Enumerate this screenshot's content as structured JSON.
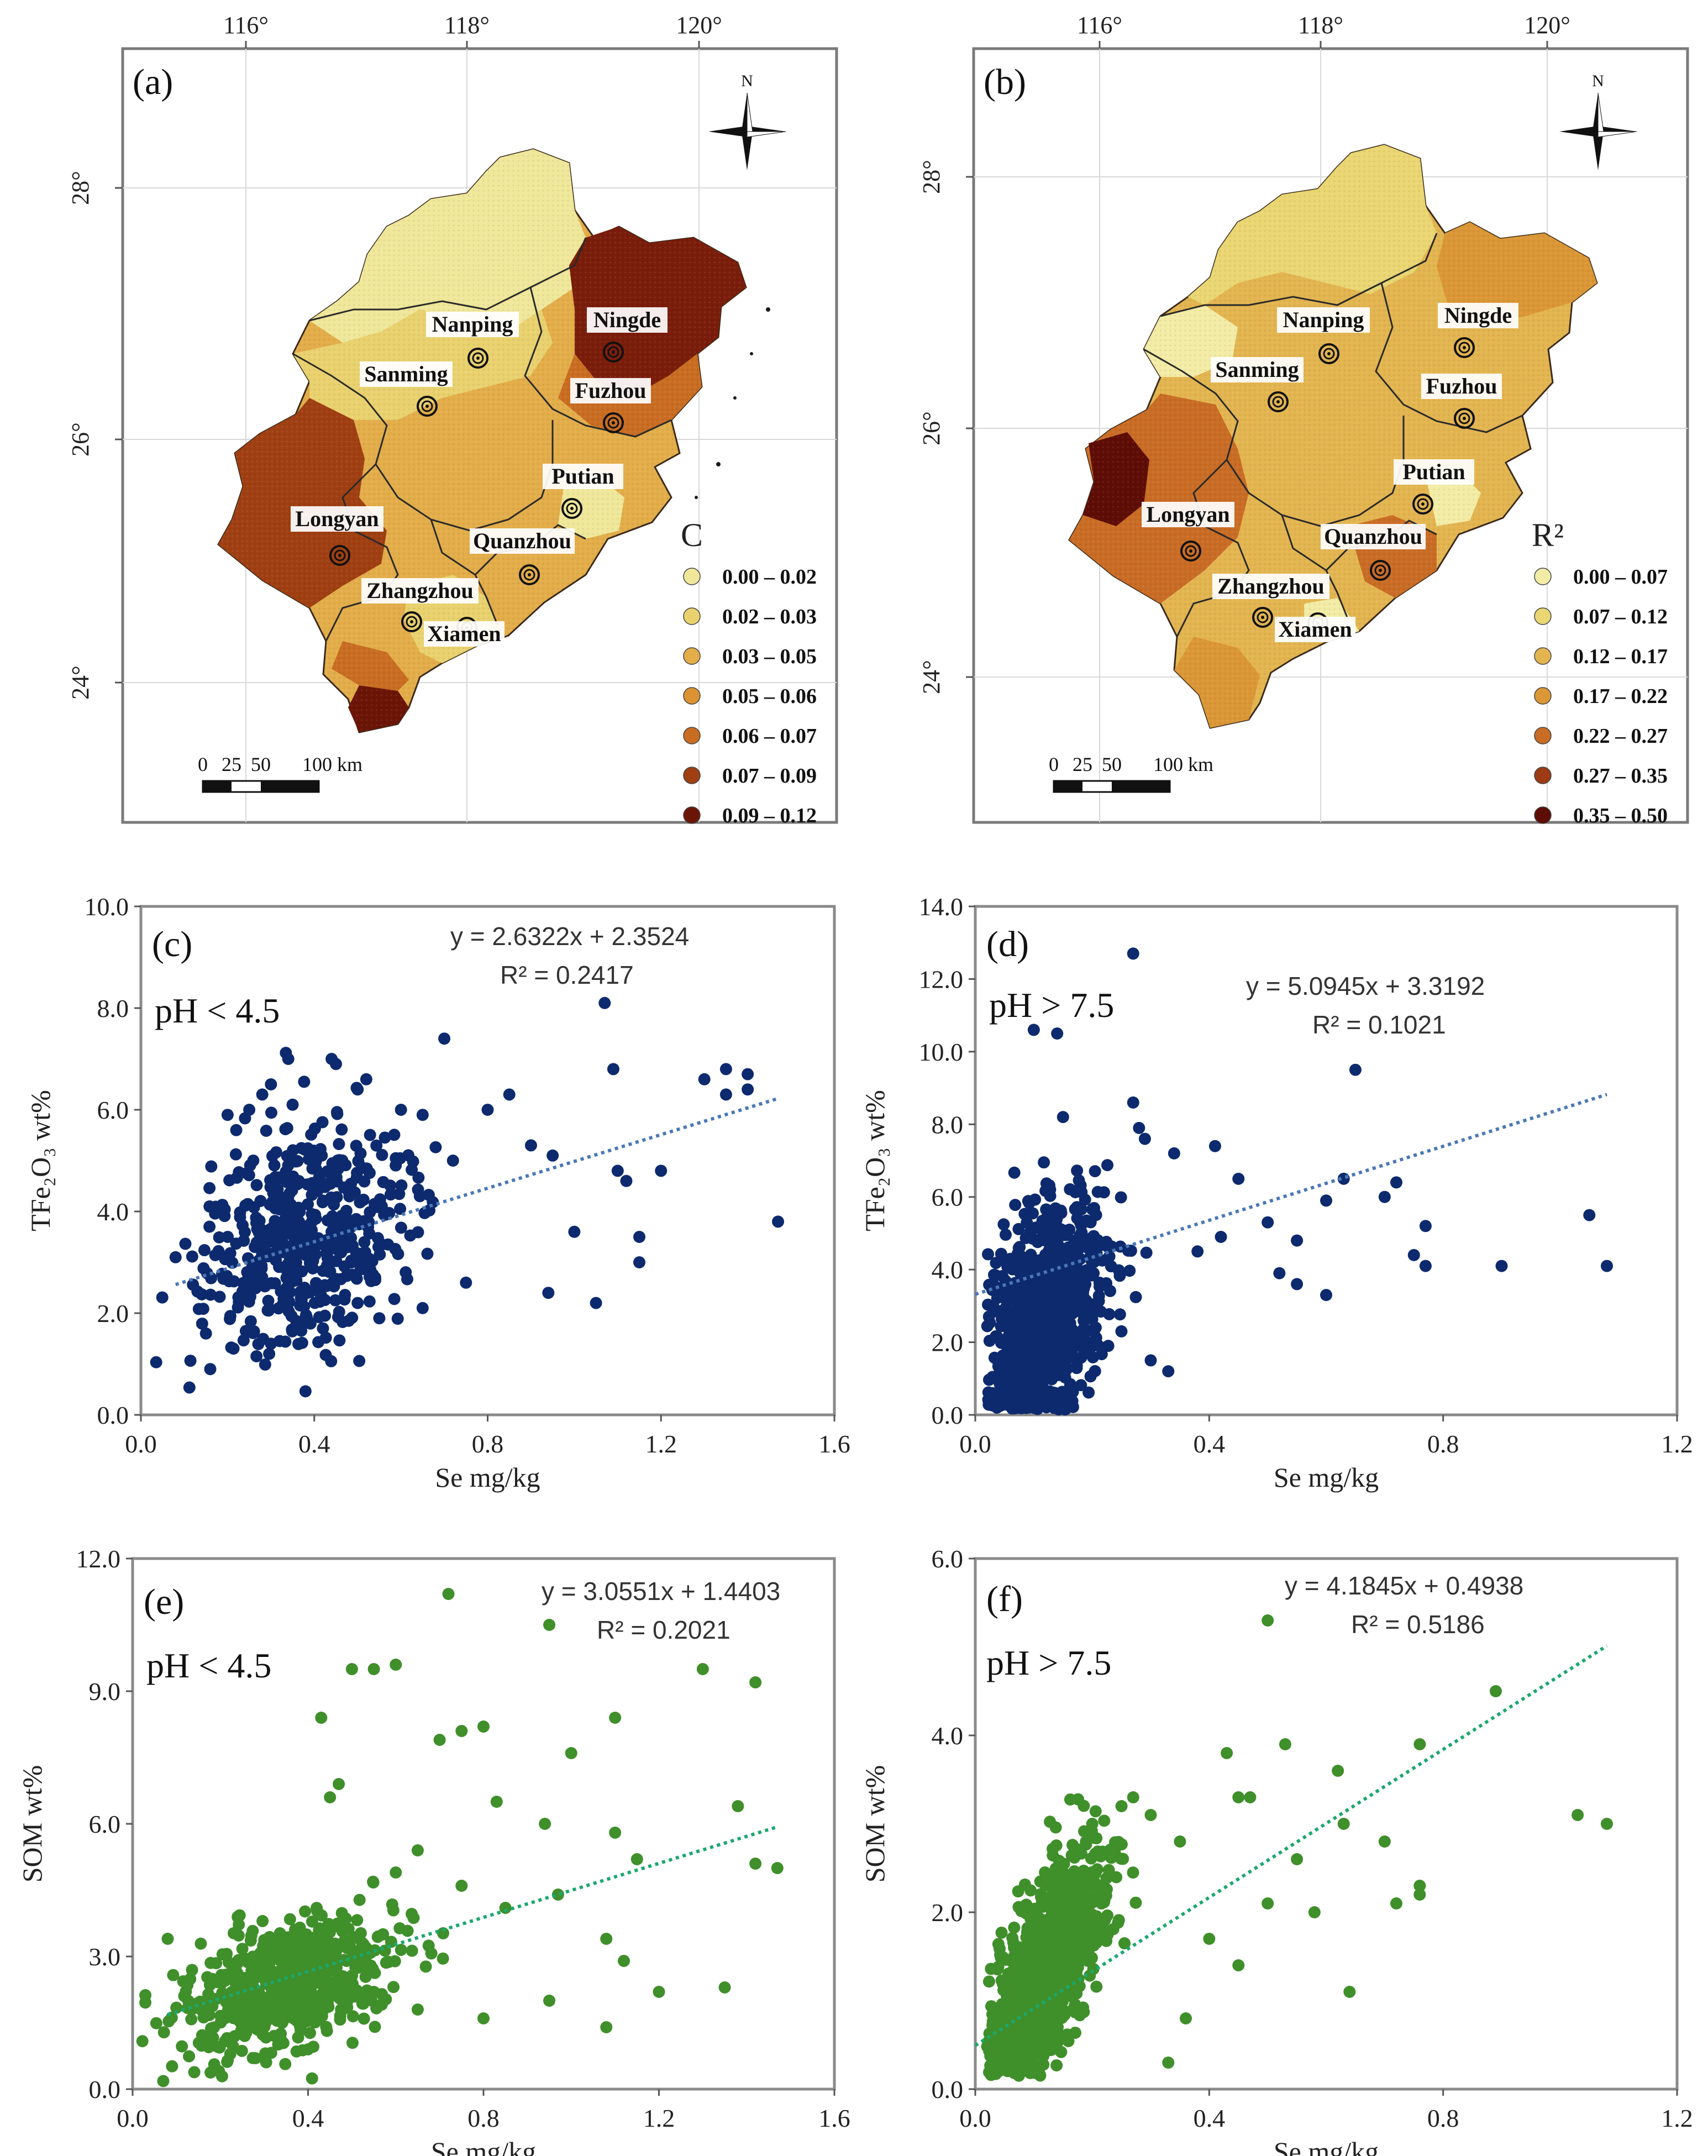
{
  "maps": [
    {
      "id": "a",
      "panel_label": "(a)",
      "legend_title": "C",
      "legend": [
        {
          "label": "0.00 – 0.02",
          "color": "#efe79a"
        },
        {
          "label": "0.02 – 0.03",
          "color": "#e9d16e"
        },
        {
          "label": "0.03 – 0.05",
          "color": "#e3ad4a"
        },
        {
          "label": "0.05 – 0.06",
          "color": "#dc9233"
        },
        {
          "label": "0.06 – 0.07",
          "color": "#c96d22"
        },
        {
          "label": "0.07 – 0.09",
          "color": "#9f3f12"
        },
        {
          "label": "0.09 – 0.12",
          "color": "#6b1507"
        }
      ]
    },
    {
      "id": "b",
      "panel_label": "(b)",
      "legend_title": "R²",
      "legend": [
        {
          "label": "0.00 – 0.07",
          "color": "#f3eca6"
        },
        {
          "label": "0.07 – 0.12",
          "color": "#ead672"
        },
        {
          "label": "0.12 – 0.17",
          "color": "#e3b550"
        },
        {
          "label": "0.17 – 0.22",
          "color": "#db9736"
        },
        {
          "label": "0.22 – 0.27",
          "color": "#c96c25"
        },
        {
          "label": "0.27 – 0.35",
          "color": "#9c3b14"
        },
        {
          "label": "0.35 – 0.50",
          "color": "#5e0d05"
        }
      ]
    }
  ],
  "map_common": {
    "lon_ticks": [
      "116°",
      "118°",
      "120°"
    ],
    "lat_ticks": [
      "28°",
      "26°",
      "24°"
    ],
    "north": "N",
    "scale_ticks": [
      "0",
      "25",
      "50",
      "100 km"
    ],
    "cities": [
      "Nanping",
      "Ningde",
      "Sanming",
      "Fuzhou",
      "Putian",
      "Longyan",
      "Quanzhou",
      "Zhangzhou",
      "Xiamen"
    ]
  },
  "chart_data": [
    {
      "id": "c",
      "type": "scatter",
      "panel_label": "(c)",
      "condition": "pH < 4.5",
      "equation": "y = 2.6322x + 2.3524",
      "r2_text": "R² = 0.2417",
      "slope": 2.6322,
      "intercept": 2.3524,
      "xlim": [
        0,
        1.6
      ],
      "ylim": [
        0,
        10
      ],
      "x_ticks": [
        "0.0",
        "0.4",
        "0.8",
        "1.2",
        "1.6"
      ],
      "y_ticks": [
        "0.0",
        "2.0",
        "4.0",
        "6.0",
        "8.0",
        "10.0"
      ],
      "xlabel": "Se  mg/kg",
      "ylabel": "TFe₂O₃ wt%",
      "color": "#0d2a6e",
      "trend_color": "#4a78b5",
      "points": [
        [
          0.08,
          3.1
        ],
        [
          0.15,
          1.6
        ],
        [
          0.16,
          0.9
        ],
        [
          0.2,
          5.9
        ],
        [
          0.22,
          5.6
        ],
        [
          0.25,
          6.0
        ],
        [
          0.28,
          6.3
        ],
        [
          0.3,
          6.5
        ],
        [
          0.34,
          7.0
        ],
        [
          0.35,
          6.1
        ],
        [
          0.44,
          7.0
        ],
        [
          0.45,
          6.9
        ],
        [
          0.5,
          6.4
        ],
        [
          0.52,
          6.6
        ],
        [
          0.6,
          6.0
        ],
        [
          0.65,
          5.9
        ],
        [
          0.7,
          7.4
        ],
        [
          0.72,
          5.0
        ],
        [
          0.75,
          2.6
        ],
        [
          0.8,
          6.0
        ],
        [
          0.85,
          6.3
        ],
        [
          0.9,
          5.3
        ],
        [
          0.94,
          2.4
        ],
        [
          0.95,
          5.1
        ],
        [
          1.0,
          3.6
        ],
        [
          1.05,
          2.2
        ],
        [
          1.07,
          8.1
        ],
        [
          1.09,
          6.8
        ],
        [
          1.1,
          4.8
        ],
        [
          1.12,
          4.6
        ],
        [
          1.15,
          3.0
        ],
        [
          1.15,
          3.5
        ],
        [
          1.2,
          4.8
        ],
        [
          1.3,
          6.6
        ],
        [
          1.35,
          6.3
        ],
        [
          1.35,
          6.8
        ],
        [
          1.4,
          6.4
        ],
        [
          1.4,
          6.7
        ],
        [
          1.47,
          3.8
        ],
        [
          0.65,
          2.1
        ],
        [
          0.55,
          1.9
        ],
        [
          0.5,
          2.2
        ],
        [
          0.42,
          1.7
        ],
        [
          0.3,
          1.4
        ]
      ]
    },
    {
      "id": "d",
      "type": "scatter",
      "panel_label": "(d)",
      "condition": "pH > 7.5",
      "equation": "y = 5.0945x + 3.3192",
      "r2_text": "R² = 0.1021",
      "slope": 5.0945,
      "intercept": 3.3192,
      "xlim": [
        0,
        1.2
      ],
      "ylim": [
        0,
        14
      ],
      "x_ticks": [
        "0.0",
        "0.4",
        "0.8",
        "1.2"
      ],
      "y_ticks": [
        "0.0",
        "2.0",
        "4.0",
        "6.0",
        "8.0",
        "10.0",
        "12.0",
        "14.0"
      ],
      "xlabel": "Se  mg/kg",
      "ylabel": "TFe₂O₃ wt%",
      "color": "#0d2a6e",
      "trend_color": "#4a78b5",
      "points": [
        [
          0.1,
          10.6
        ],
        [
          0.14,
          10.5
        ],
        [
          0.27,
          12.7
        ],
        [
          0.15,
          8.2
        ],
        [
          0.27,
          8.6
        ],
        [
          0.28,
          7.9
        ],
        [
          0.29,
          7.6
        ],
        [
          0.34,
          7.2
        ],
        [
          0.41,
          7.4
        ],
        [
          0.45,
          6.5
        ],
        [
          0.5,
          5.3
        ],
        [
          0.55,
          4.8
        ],
        [
          0.6,
          5.9
        ],
        [
          0.63,
          6.5
        ],
        [
          0.65,
          9.5
        ],
        [
          0.7,
          6.0
        ],
        [
          0.72,
          6.4
        ],
        [
          0.75,
          4.4
        ],
        [
          0.77,
          4.1
        ],
        [
          0.77,
          5.2
        ],
        [
          0.9,
          4.1
        ],
        [
          1.05,
          5.5
        ],
        [
          1.08,
          4.1
        ],
        [
          0.33,
          1.2
        ],
        [
          0.3,
          1.5
        ],
        [
          0.52,
          3.9
        ],
        [
          0.55,
          3.6
        ],
        [
          0.6,
          3.3
        ],
        [
          0.38,
          4.5
        ],
        [
          0.42,
          4.9
        ]
      ]
    },
    {
      "id": "e",
      "type": "scatter",
      "panel_label": "(e)",
      "condition": "pH < 4.5",
      "equation": "y = 3.0551x + 1.4403",
      "r2_text": "R² = 0.2021",
      "slope": 3.0551,
      "intercept": 1.4403,
      "xlim": [
        0,
        1.6
      ],
      "ylim": [
        0,
        12
      ],
      "x_ticks": [
        "0.0",
        "0.4",
        "0.8",
        "1.2",
        "1.6"
      ],
      "y_ticks": [
        "0.0",
        "3.0",
        "6.0",
        "9.0",
        "12.0"
      ],
      "xlabel": "Se  mg/kg",
      "ylabel": "SOM  wt%",
      "color": "#3f8f2a",
      "trend_color": "#1aa86f",
      "points": [
        [
          0.08,
          3.4
        ],
        [
          0.43,
          8.4
        ],
        [
          0.45,
          6.6
        ],
        [
          0.47,
          6.9
        ],
        [
          0.5,
          9.5
        ],
        [
          0.55,
          9.5
        ],
        [
          0.6,
          9.6
        ],
        [
          0.7,
          7.9
        ],
        [
          0.72,
          11.2
        ],
        [
          0.75,
          8.1
        ],
        [
          0.8,
          8.2
        ],
        [
          0.83,
          6.5
        ],
        [
          0.94,
          6.0
        ],
        [
          0.95,
          10.5
        ],
        [
          1.0,
          7.6
        ],
        [
          1.1,
          8.4
        ],
        [
          1.1,
          5.8
        ],
        [
          1.15,
          5.2
        ],
        [
          1.2,
          2.2
        ],
        [
          1.3,
          9.5
        ],
        [
          1.35,
          2.3
        ],
        [
          1.38,
          6.4
        ],
        [
          1.42,
          9.2
        ],
        [
          1.42,
          5.1
        ],
        [
          1.47,
          5.0
        ],
        [
          0.6,
          4.9
        ],
        [
          0.65,
          5.4
        ],
        [
          0.75,
          4.6
        ],
        [
          0.85,
          4.1
        ],
        [
          0.97,
          4.4
        ],
        [
          1.08,
          3.4
        ],
        [
          1.12,
          2.9
        ],
        [
          0.55,
          2.2
        ],
        [
          0.65,
          1.8
        ],
        [
          0.8,
          1.6
        ],
        [
          0.95,
          2.0
        ],
        [
          1.08,
          1.4
        ],
        [
          0.28,
          0.7
        ],
        [
          0.4,
          0.9
        ]
      ]
    },
    {
      "id": "f",
      "type": "scatter",
      "panel_label": "(f)",
      "condition": "pH > 7.5",
      "equation": "y = 4.1845x + 0.4938",
      "r2_text": "R² = 0.5186",
      "slope": 4.1845,
      "intercept": 0.4938,
      "xlim": [
        0,
        1.2
      ],
      "ylim": [
        0,
        6
      ],
      "x_ticks": [
        "0.0",
        "0.4",
        "0.8",
        "1.2"
      ],
      "y_ticks": [
        "0.0",
        "2.0",
        "4.0",
        "6.0"
      ],
      "xlabel": "Se  mg/kg",
      "ylabel": "SOM  wt%",
      "color": "#3f8f2a",
      "trend_color": "#1aa86f",
      "points": [
        [
          0.5,
          5.3
        ],
        [
          0.53,
          3.9
        ],
        [
          0.43,
          3.8
        ],
        [
          0.45,
          3.3
        ],
        [
          0.47,
          3.3
        ],
        [
          0.62,
          3.6
        ],
        [
          0.63,
          3.0
        ],
        [
          0.7,
          2.8
        ],
        [
          0.72,
          2.1
        ],
        [
          0.76,
          3.9
        ],
        [
          0.76,
          2.3
        ],
        [
          0.76,
          2.2
        ],
        [
          0.89,
          4.5
        ],
        [
          1.03,
          3.1
        ],
        [
          1.08,
          3.0
        ],
        [
          0.64,
          1.1
        ],
        [
          0.55,
          2.6
        ],
        [
          0.58,
          2.0
        ],
        [
          0.5,
          2.1
        ],
        [
          0.4,
          1.7
        ],
        [
          0.45,
          1.4
        ],
        [
          0.36,
          0.8
        ],
        [
          0.33,
          0.3
        ],
        [
          0.3,
          3.1
        ],
        [
          0.35,
          2.8
        ],
        [
          0.27,
          3.3
        ],
        [
          0.25,
          3.2
        ],
        [
          0.2,
          3.0
        ]
      ]
    }
  ]
}
